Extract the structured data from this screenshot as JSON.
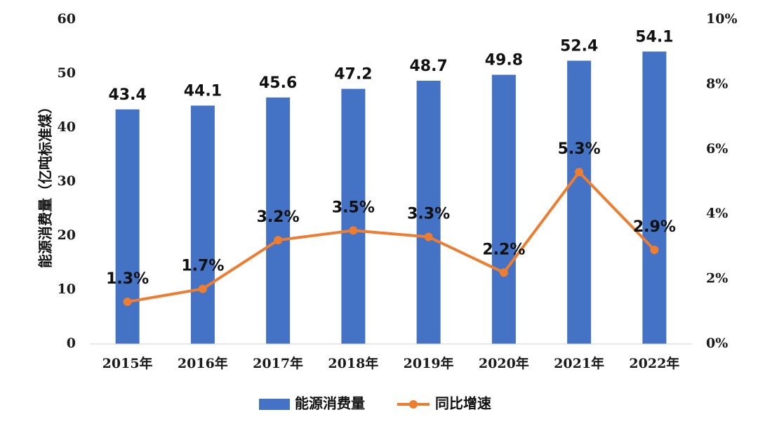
{
  "chart_data": {
    "type": "bar",
    "categories": [
      "2015年",
      "2016年",
      "2017年",
      "2018年",
      "2019年",
      "2020年",
      "2021年",
      "2022年"
    ],
    "series": [
      {
        "name": "能源消费量",
        "type": "bar",
        "axis": "left",
        "color": "#4472C4",
        "values": [
          43.4,
          44.1,
          45.6,
          47.2,
          48.7,
          49.8,
          52.4,
          54.1
        ],
        "labels": [
          "43.4",
          "44.1",
          "45.6",
          "47.2",
          "48.7",
          "49.8",
          "52.4",
          "54.1"
        ]
      },
      {
        "name": "同比增速",
        "type": "line",
        "axis": "right",
        "color": "#ED7D31",
        "values": [
          1.3,
          1.7,
          3.2,
          3.5,
          3.3,
          2.2,
          5.3,
          2.9
        ],
        "labels": [
          "1.3%",
          "1.7%",
          "3.2%",
          "3.5%",
          "3.3%",
          "2.2%",
          "5.3%",
          "2.9%"
        ]
      }
    ],
    "ylabel": "能源消费量（亿吨标准煤）",
    "ylim": [
      0,
      60
    ],
    "yticks": [
      "0",
      "10",
      "20",
      "30",
      "40",
      "50",
      "60"
    ],
    "y2lim": [
      0,
      10
    ],
    "y2ticks": [
      "0%",
      "2%",
      "4%",
      "6%",
      "8%",
      "10%"
    ],
    "grid": false,
    "legend": "bottom"
  }
}
